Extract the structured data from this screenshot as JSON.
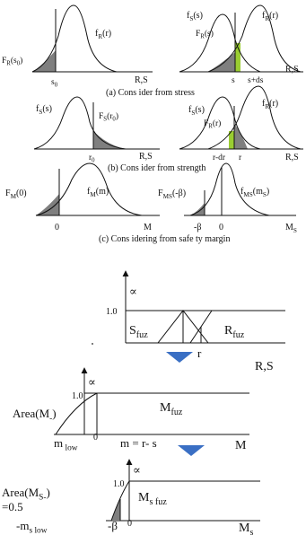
{
  "panel_a": {
    "left": {
      "curve_label": "f<sub>R</sub>(r)",
      "area_label": "F<sub>R</sub>(s<sub>0</sub>)",
      "tick": "s<sub>0</sub>",
      "axis": "R,S"
    },
    "right": {
      "curve_s": "f<sub>S</sub>(s)",
      "curve_r": "f<sub>R</sub>(r)",
      "area_label": "F<sub>R</sub>(s)",
      "tick_s": "s",
      "tick_ds": "s+ds",
      "axis": "R,S"
    },
    "caption": "(a) Cons ider from stress"
  },
  "panel_b": {
    "left": {
      "curve_label": "f<sub>S</sub>(s)",
      "area_label": "F<sub>S</sub>(r<sub>0</sub>)",
      "tick": "r<sub>0</sub>",
      "axis": "R,S"
    },
    "right": {
      "curve_s": "f<sub>S</sub>(s)",
      "curve_r": "f<sub>R</sub>(r)",
      "area_label": "F<sub>R</sub>(r)",
      "tick_dr": "r-dr",
      "tick_r": "r",
      "axis": "R,S"
    },
    "caption": "(b) Cons ider from strength"
  },
  "panel_c": {
    "left": {
      "area_label": "F<sub>M</sub>(0)",
      "curve_label": "f<sub>M</sub>(m)",
      "tick": "0",
      "axis": "M"
    },
    "right": {
      "area_label": "F<sub>MS</sub>(-β)",
      "curve_label": "f<sub>MS</sub>(m<sub>S</sub>)",
      "tick_beta": "-β",
      "tick_zero": "0",
      "axis": "M<sub>S</sub>"
    },
    "caption": "(c) Cons idering from safe ty margin"
  },
  "fuzzy": {
    "chart1": {
      "infinity": "∝",
      "one": "1.0",
      "s_label": "S<sub>fuz</sub>",
      "r_label": "R<sub>fuz</sub>",
      "tick_s": "s",
      "tick_r": "r",
      "axis": "R,S"
    },
    "chart2": {
      "infinity": "∝",
      "one": "1.0",
      "area": "Area(M<sub>-</sub>)",
      "m_label": "M<sub>fuz</sub>",
      "m_low": "m<sub> low</sub>",
      "zero": "0",
      "eq": "m = r- s",
      "axis": "M"
    },
    "chart3": {
      "infinity": "∝",
      "one": "1.0",
      "area": "Area(M<sub>S-</sub>)",
      "half": "=0.5",
      "ms_label": "M<sub>s fuz</sub>",
      "ms_low": "-m<sub>s low</sub>",
      "beta": "-β",
      "zero": "0",
      "axis": "M<sub>s</sub>"
    }
  },
  "colors": {
    "shade": "#7f7f7f",
    "accent": "#9acd32",
    "arrow": "#3a6fc4"
  }
}
